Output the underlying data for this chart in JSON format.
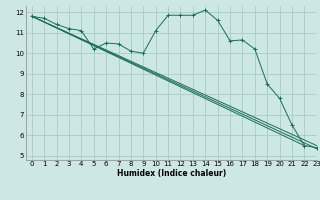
{
  "xlabel": "Humidex (Indice chaleur)",
  "xlim": [
    -0.5,
    23
  ],
  "ylim": [
    4.8,
    12.3
  ],
  "yticks": [
    5,
    6,
    7,
    8,
    9,
    10,
    11,
    12
  ],
  "xticks": [
    0,
    1,
    2,
    3,
    4,
    5,
    6,
    7,
    8,
    9,
    10,
    11,
    12,
    13,
    14,
    15,
    16,
    17,
    18,
    19,
    20,
    21,
    22,
    23
  ],
  "background_color": "#cde8e4",
  "grid_color": "#a8ccc8",
  "line_color": "#1a6b5a",
  "series_main": {
    "x": [
      0,
      1,
      2,
      3,
      4,
      5,
      6,
      7,
      8,
      9,
      10,
      11,
      12,
      13,
      14,
      15,
      16,
      17,
      18,
      19,
      20,
      21,
      22,
      23
    ],
    "y": [
      11.8,
      11.7,
      11.4,
      11.2,
      11.1,
      10.2,
      10.5,
      10.45,
      10.1,
      10.0,
      11.1,
      11.85,
      11.85,
      11.85,
      12.1,
      11.6,
      10.6,
      10.65,
      10.2,
      8.5,
      7.8,
      6.5,
      5.5,
      5.4
    ]
  },
  "series_lines": [
    {
      "x": [
        0,
        23
      ],
      "y": [
        11.8,
        5.35
      ]
    },
    {
      "x": [
        0,
        22
      ],
      "y": [
        11.8,
        5.5
      ]
    },
    {
      "x": [
        0,
        23
      ],
      "y": [
        11.8,
        5.5
      ]
    }
  ]
}
